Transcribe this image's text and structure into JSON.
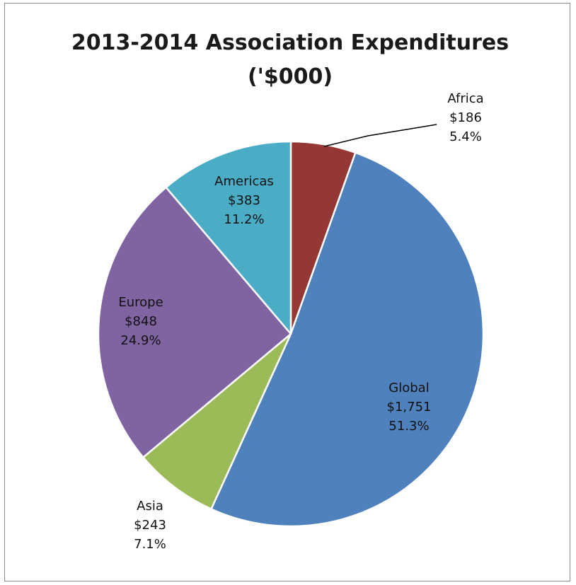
{
  "chart_data": {
    "type": "pie",
    "title": "2013-2014 Association  Expenditures",
    "subtitle": "('$000)",
    "slices": [
      {
        "label": "Africa",
        "value": 186,
        "value_text": "$186",
        "percent_text": "5.4%",
        "color": "#953735"
      },
      {
        "label": "Global",
        "value": 1751,
        "value_text": "$1,751",
        "percent_text": "51.3%",
        "color": "#4f81bd"
      },
      {
        "label": "Asia",
        "value": 243,
        "value_text": "$243",
        "percent_text": "7.1%",
        "color": "#9bbb59"
      },
      {
        "label": "Europe",
        "value": 848,
        "value_text": "$848",
        "percent_text": "24.9%",
        "color": "#8064a2"
      },
      {
        "label": "Americas",
        "value": 383,
        "value_text": "$383",
        "percent_text": "11.2%",
        "color": "#4bacc6"
      }
    ],
    "start_angle": "12 o'clock",
    "direction": "clockwise",
    "legend": "none"
  }
}
